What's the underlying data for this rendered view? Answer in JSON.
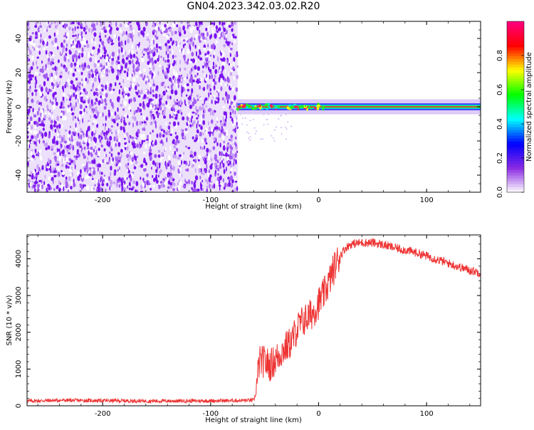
{
  "title": "GN04.2023.342.03.02.R20",
  "colors": {
    "snr_line": "#ee3333",
    "background": "#ffffff",
    "frame": "#000000",
    "colormap": [
      "#ffffff",
      "#8a2be2",
      "#0000ff",
      "#00ffff",
      "#00ff00",
      "#ffff00",
      "#ff0000",
      "#ff0080"
    ]
  },
  "chart_data": [
    {
      "id": "spectrogram",
      "type": "heatmap",
      "title": "GN04.2023.342.03.02.R20",
      "xlabel": "Height of straight line (km)",
      "ylabel": "Frequency (Hz)",
      "xlim": [
        -270,
        150
      ],
      "ylim": [
        -50,
        50
      ],
      "x_ticks": [
        -200,
        -100,
        0,
        100
      ],
      "y_ticks": [
        -40,
        -20,
        0,
        20,
        40
      ],
      "noise_region_x": [
        -270,
        -75
      ],
      "signal_band": {
        "x_start": -75,
        "x_end": 150,
        "center_frequency": 0,
        "half_width": 2
      },
      "colorbar": {
        "label": "Normalized spectral amplitude",
        "range": [
          0,
          1
        ],
        "ticks": [
          0.0,
          0.2,
          0.4,
          0.6,
          0.8
        ],
        "tick_labels": [
          "0.0",
          "0.2",
          "0.4",
          "0.6",
          "0.8"
        ]
      },
      "grid": false
    },
    {
      "id": "snr",
      "type": "line",
      "xlabel": "Height of straight line (km)",
      "ylabel": "SNR (10 * v/v)",
      "xlim": [
        -270,
        150
      ],
      "ylim": [
        0,
        4650
      ],
      "x_ticks": [
        -200,
        -100,
        0,
        100
      ],
      "y_ticks": [
        0,
        1000,
        2000,
        3000,
        4000
      ],
      "grid": false,
      "series": [
        {
          "x": [
            -270,
            -240,
            -200,
            -150,
            -100,
            -60,
            -58,
            -55,
            -50,
            -45,
            -40,
            -35,
            -30,
            -25,
            -20,
            -15,
            -10,
            -5,
            0,
            5,
            10,
            15,
            20,
            25,
            30,
            40,
            50,
            60,
            70,
            80,
            90,
            100,
            110,
            120,
            130,
            140,
            150
          ],
          "y": [
            130,
            150,
            140,
            130,
            135,
            150,
            350,
            1200,
            1200,
            1100,
            1250,
            1450,
            1600,
            1750,
            2100,
            2300,
            2400,
            2550,
            2800,
            3050,
            3400,
            3800,
            4100,
            4300,
            4400,
            4440,
            4440,
            4380,
            4300,
            4240,
            4170,
            4080,
            3980,
            3880,
            3780,
            3690,
            3620
          ]
        }
      ]
    }
  ]
}
